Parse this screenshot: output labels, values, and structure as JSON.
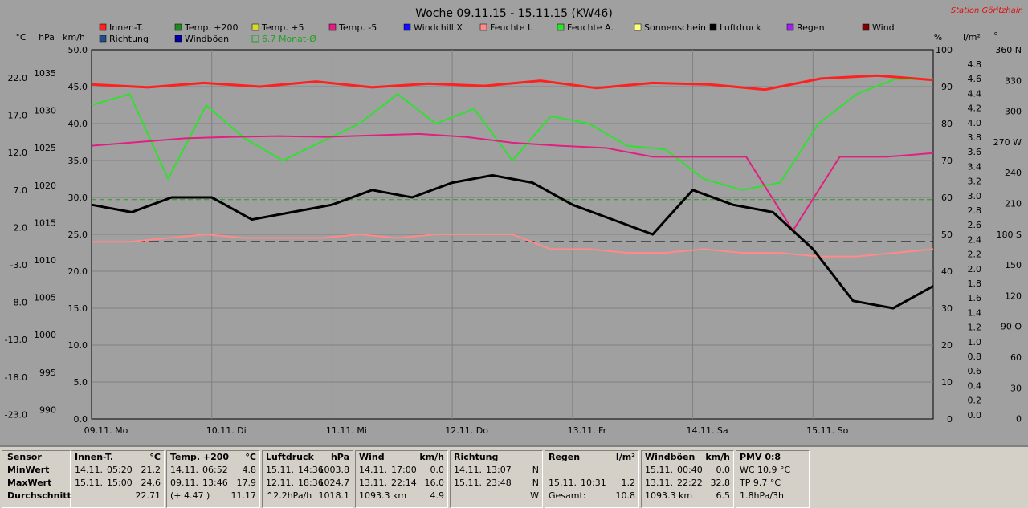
{
  "window": {
    "title": "Woche 09.11.15 - 15.11.15 (KW46)",
    "station": "Station Göritzhain"
  },
  "colors": {
    "background": "#a0a0a0",
    "grid": "#808080"
  },
  "legend": [
    {
      "label": "Innen-T.",
      "color": "#ff2020"
    },
    {
      "label": "Temp. +200",
      "color": "#208a20"
    },
    {
      "label": "Temp. +5",
      "color": "#d8d830"
    },
    {
      "label": "Temp. -5",
      "color": "#e02080"
    },
    {
      "label": "Windchill X",
      "color": "#1010ff"
    },
    {
      "label": "Feuchte I.",
      "color": "#ff8a8a"
    },
    {
      "label": "Feuchte A.",
      "color": "#30e030"
    },
    {
      "label": "Sonnenschein",
      "color": "#ffff80"
    },
    {
      "label": "Luftdruck",
      "color": "#000000"
    },
    {
      "label": "Regen",
      "color": "#a020f0"
    },
    {
      "label": "Wind",
      "color": "#800000"
    },
    {
      "label": "Richtung",
      "color": "#1f4e8a"
    },
    {
      "label": "Windböen",
      "color": "#0000a0"
    },
    {
      "label": "6.7 Monat-Ø",
      "color": "#20a020"
    }
  ],
  "chart_data": {
    "type": "line",
    "title": "Woche 09.11.15 - 15.11.15 (KW46)",
    "axis_units": {
      "temp": "°C",
      "pressure": "hPa",
      "wind": "km/h",
      "humidity": "%",
      "rain": "l/m²",
      "direction": "°"
    },
    "temp_ticks": [
      "22.0",
      "17.0",
      "12.0",
      "7.0",
      "2.0",
      "-3.0",
      "-8.0",
      "-13.0",
      "-18.0",
      "-23.0"
    ],
    "pressure_ticks": [
      "1035",
      "1030",
      "1025",
      "1020",
      "1015",
      "1010",
      "1005",
      "1000",
      "995",
      "990"
    ],
    "wind_ticks": [
      "50.0",
      "45.0",
      "40.0",
      "35.0",
      "30.0",
      "25.0",
      "20.0",
      "15.0",
      "10.0",
      "5.0",
      "0.0"
    ],
    "humidity_ticks": [
      "100",
      "90",
      "80",
      "70",
      "60",
      "50",
      "40",
      "30",
      "20",
      "10",
      "0"
    ],
    "rain_ticks": [
      "4.8",
      "4.6",
      "4.4",
      "4.2",
      "4.0",
      "3.8",
      "3.6",
      "3.4",
      "3.2",
      "3.0",
      "2.8",
      "2.6",
      "2.4",
      "2.2",
      "2.0",
      "1.8",
      "1.6",
      "1.4",
      "1.2",
      "1.0",
      "0.8",
      "0.6",
      "0.4",
      "0.2",
      "0.0"
    ],
    "dir_ticks": [
      "360 N",
      "330",
      "300",
      "270 W",
      "240",
      "210",
      "180 S",
      "150",
      "120",
      "90 O",
      "60",
      "30",
      "0"
    ],
    "x_labels": [
      "09.11. Mo",
      "10.11. Di",
      "11.11. Mi",
      "12.11. Do",
      "13.11. Fr",
      "14.11. Sa",
      "15.11. So"
    ],
    "temp_range": [
      -23,
      27
    ],
    "series": [
      {
        "name": "Innen-T.",
        "values": [
          22.3,
          21.9,
          22.5,
          22.0,
          22.7,
          21.9,
          22.4,
          22.1,
          22.8,
          21.8,
          22.5,
          22.3,
          21.6,
          23.1,
          23.5,
          22.9
        ]
      },
      {
        "name": "Luftdruck",
        "values": [
          1019,
          1018,
          1020,
          1020,
          1017,
          1018,
          1019,
          1021,
          1020,
          1022,
          1023,
          1022,
          1019,
          1017,
          1015,
          1021,
          1019,
          1018,
          1013,
          1006,
          1005,
          1008
        ]
      },
      {
        "name": "Feuchte I.",
        "values": [
          48,
          48,
          49,
          50,
          49,
          49,
          49,
          50,
          49,
          50,
          50,
          50,
          46,
          46,
          45,
          45,
          46,
          45,
          45,
          44,
          44,
          45,
          46
        ]
      },
      {
        "name": "Feuchte A.",
        "values": [
          85,
          88,
          65,
          85,
          76,
          70,
          75,
          80,
          88,
          80,
          84,
          70,
          82,
          80,
          74,
          73,
          65,
          62,
          64,
          80,
          88,
          92,
          92
        ]
      },
      {
        "name": "Temp. -5",
        "values": [
          14.0,
          14.5,
          15.0,
          15.2,
          15.3,
          15.2,
          15.4,
          15.6,
          15.2,
          14.4,
          14.0,
          13.7,
          12.5,
          12.5,
          12.5,
          2.5,
          12.5,
          12.5,
          13.0
        ]
      }
    ],
    "month_average_temp": 6.7
  },
  "stats": {
    "sensor": {
      "title": "Sensor",
      "rows": [
        "MinWert",
        "MaxWert",
        "Durchschnitt"
      ]
    },
    "innen": {
      "title": "Innen-T.",
      "unit": "°C",
      "rows": [
        [
          "14.11.",
          "05:20",
          "21.2"
        ],
        [
          "15.11.",
          "15:00",
          "24.6"
        ],
        [
          "",
          "",
          "22.71"
        ]
      ]
    },
    "temp": {
      "title": "Temp. +200",
      "unit": "°C",
      "rows": [
        [
          "14.11.",
          "06:52",
          "4.8"
        ],
        [
          "09.11.",
          "13:46",
          "17.9"
        ],
        [
          "(+ 4.47 )",
          "",
          "11.17"
        ]
      ]
    },
    "druck": {
      "title": "Luftdruck",
      "unit": "hPa",
      "rows": [
        [
          "15.11.",
          "14:36",
          "1003.8"
        ],
        [
          "12.11.",
          "18:36",
          "1024.7"
        ],
        [
          "^2.2hPa/h",
          "",
          "1018.1"
        ]
      ]
    },
    "wind": {
      "title": "Wind",
      "unit": "km/h",
      "rows": [
        [
          "14.11.",
          "17:00",
          "0.0"
        ],
        [
          "13.11.",
          "22:14",
          "16.0"
        ],
        [
          "1093.3 km",
          "",
          "4.9"
        ]
      ]
    },
    "richtung": {
      "title": "Richtung",
      "unit": "",
      "rows": [
        [
          "14.11.",
          "13:07",
          "N"
        ],
        [
          "15.11.",
          "23:48",
          "N"
        ],
        [
          "",
          "",
          "W"
        ]
      ]
    },
    "regen": {
      "title": "Regen",
      "unit": "l/m²",
      "rows": [
        [
          "",
          "",
          ""
        ],
        [
          "15.11.",
          "10:31",
          "1.2"
        ],
        [
          "Gesamt:",
          "",
          "10.8"
        ]
      ]
    },
    "boeen": {
      "title": "Windböen",
      "unit": "km/h",
      "rows": [
        [
          "15.11.",
          "00:40",
          "0.0"
        ],
        [
          "13.11.",
          "22:22",
          "32.8"
        ],
        [
          "1093.3 km",
          "",
          "6.5"
        ]
      ]
    },
    "pmv": {
      "title": "PMV 0:8",
      "rows": [
        "WC 10.9 °C",
        "TP 9.7 °C",
        "1.8hPa/3h"
      ]
    }
  }
}
